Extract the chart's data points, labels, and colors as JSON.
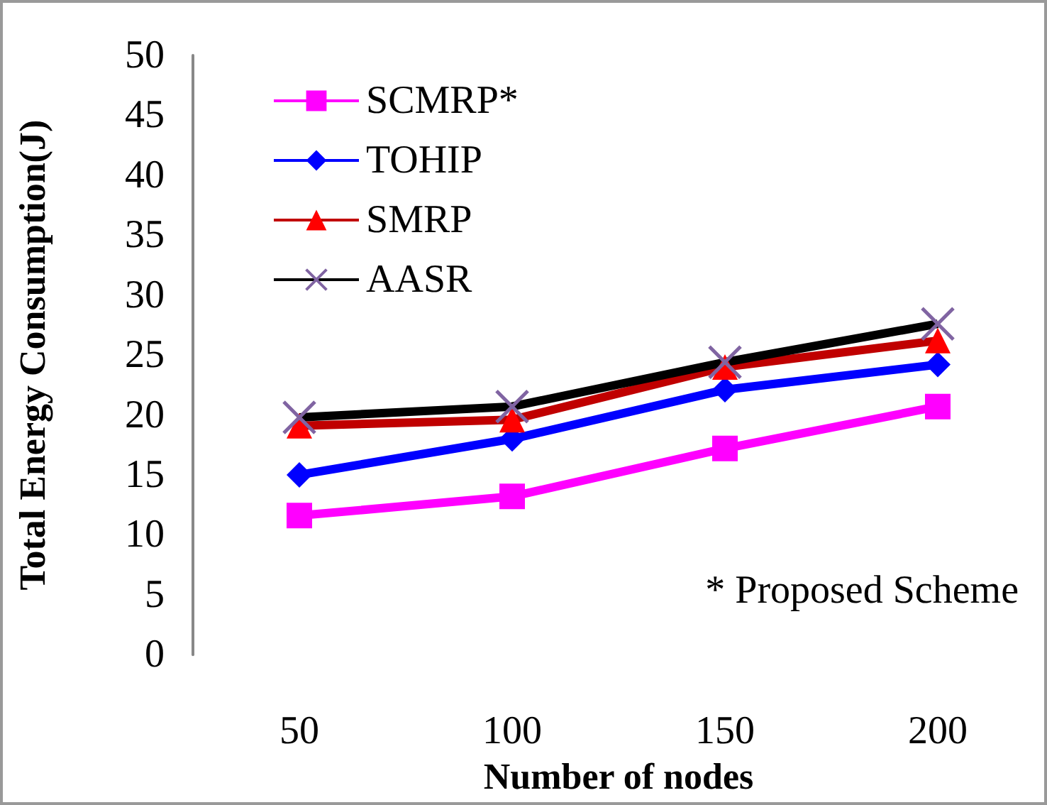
{
  "chart_data": {
    "type": "line",
    "xlabel": "Number of nodes",
    "ylabel": "Total Energy Consumption(J)",
    "categories": [
      "50",
      "100",
      "150",
      "200"
    ],
    "series": [
      {
        "name": "SCMRP*",
        "color": "#ff00ff",
        "marker": "square",
        "values": [
          11.6,
          13.2,
          17.2,
          20.7
        ]
      },
      {
        "name": "TOHIP",
        "color": "#0000ff",
        "marker": "diamond",
        "values": [
          15.0,
          18.0,
          22.1,
          24.2
        ]
      },
      {
        "name": "SMRP",
        "color": "#c00000",
        "marker": "triangle",
        "values": [
          19.1,
          19.6,
          24.0,
          26.2
        ]
      },
      {
        "name": "AASR",
        "color": "#000000",
        "marker": "cross",
        "values": [
          19.8,
          20.7,
          24.4,
          27.6
        ]
      }
    ],
    "ylim": [
      0,
      50
    ],
    "yticks": [
      0,
      5,
      10,
      15,
      20,
      25,
      30,
      35,
      40,
      45,
      50
    ],
    "annotations": [
      "* Proposed Scheme"
    ],
    "grid": false,
    "legend": "top left"
  }
}
